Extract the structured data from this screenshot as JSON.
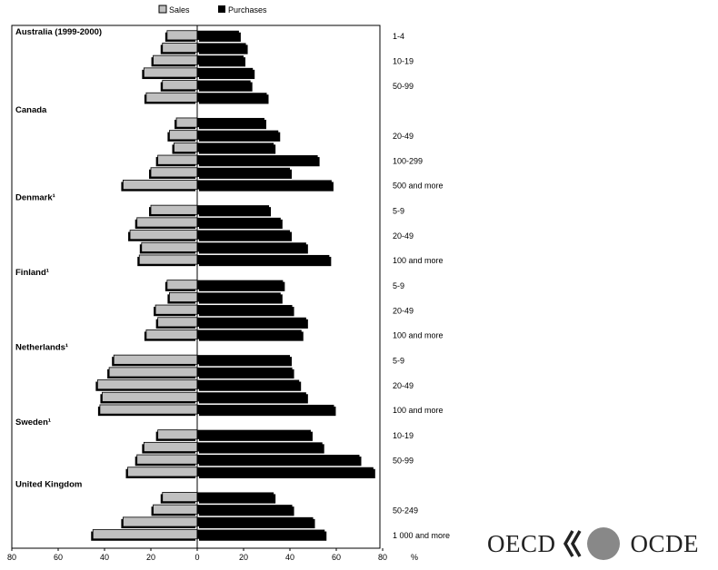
{
  "chart_data": {
    "type": "bar",
    "orientation": "horizontal",
    "layout": "diverging",
    "series": [
      {
        "name": "Sales",
        "color": "#c0c0c0"
      },
      {
        "name": "Purchases",
        "color": "#000000"
      }
    ],
    "xlim": [
      -80,
      80
    ],
    "x_ticks": [
      "80",
      "60",
      "40",
      "20",
      "0",
      "20",
      "40",
      "60",
      "80"
    ],
    "x_unit": "%",
    "grid": false,
    "legend_position": "top",
    "groups": [
      {
        "name": "Australia (1999-2000)",
        "bars": [
          {
            "label": "1-4",
            "sales": 13,
            "purchases": 18
          },
          {
            "label": "",
            "sales": 15,
            "purchases": 21
          },
          {
            "label": "10-19",
            "sales": 19,
            "purchases": 20
          },
          {
            "label": "",
            "sales": 23,
            "purchases": 24
          },
          {
            "label": "50-99",
            "sales": 15,
            "purchases": 23
          },
          {
            "label": "",
            "sales": 22,
            "purchases": 30
          }
        ]
      },
      {
        "name": "Canada",
        "bars": [
          {
            "label": "",
            "sales": 9,
            "purchases": 29
          },
          {
            "label": "20-49",
            "sales": 12,
            "purchases": 35
          },
          {
            "label": "",
            "sales": 10,
            "purchases": 33
          },
          {
            "label": "100-299",
            "sales": 17,
            "purchases": 52
          },
          {
            "label": "",
            "sales": 20,
            "purchases": 40
          },
          {
            "label": "500 and more",
            "sales": 32,
            "purchases": 58
          }
        ]
      },
      {
        "name": "Denmark¹",
        "bars": [
          {
            "label": "5-9",
            "sales": 20,
            "purchases": 31
          },
          {
            "label": "",
            "sales": 26,
            "purchases": 36
          },
          {
            "label": "20-49",
            "sales": 29,
            "purchases": 40
          },
          {
            "label": "",
            "sales": 24,
            "purchases": 47
          },
          {
            "label": "100 and more",
            "sales": 25,
            "purchases": 57
          }
        ]
      },
      {
        "name": "Finland¹",
        "bars": [
          {
            "label": "5-9",
            "sales": 13,
            "purchases": 37
          },
          {
            "label": "",
            "sales": 12,
            "purchases": 36
          },
          {
            "label": "20-49",
            "sales": 18,
            "purchases": 41
          },
          {
            "label": "",
            "sales": 17,
            "purchases": 47
          },
          {
            "label": "100 and more",
            "sales": 22,
            "purchases": 45
          }
        ]
      },
      {
        "name": "Netherlands¹",
        "bars": [
          {
            "label": "5-9",
            "sales": 36,
            "purchases": 40
          },
          {
            "label": "",
            "sales": 38,
            "purchases": 41
          },
          {
            "label": "20-49",
            "sales": 43,
            "purchases": 44
          },
          {
            "label": "",
            "sales": 41,
            "purchases": 47
          },
          {
            "label": "100 and more",
            "sales": 42,
            "purchases": 59
          }
        ]
      },
      {
        "name": "Sweden¹",
        "bars": [
          {
            "label": "10-19",
            "sales": 17,
            "purchases": 49
          },
          {
            "label": "",
            "sales": 23,
            "purchases": 54
          },
          {
            "label": "50-99",
            "sales": 26,
            "purchases": 70
          },
          {
            "label": "",
            "sales": 30,
            "purchases": 76
          }
        ]
      },
      {
        "name": "United Kingdom",
        "bars": [
          {
            "label": "",
            "sales": 15,
            "purchases": 33
          },
          {
            "label": "50-249",
            "sales": 19,
            "purchases": 41
          },
          {
            "label": "",
            "sales": 32,
            "purchases": 50
          },
          {
            "label": "1 000 and more",
            "sales": 45,
            "purchases": 55
          }
        ]
      }
    ]
  },
  "logo": {
    "left_text": "OECD",
    "right_text": "OCDE",
    "colors": {
      "text": "#222222",
      "globe": "#888888"
    }
  }
}
